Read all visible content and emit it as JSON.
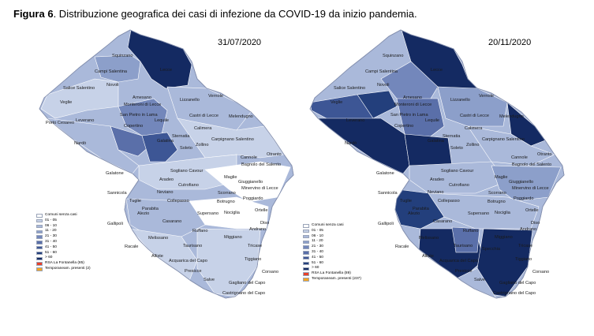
{
  "caption": {
    "bold": "Figura 6",
    "rest": ". Distribuzione  geografica dei  casi di infezione  da  COVID-19 da inizio pandemia."
  },
  "maps": [
    {
      "date": "31/07/2020",
      "legend": [
        {
          "label": "Comuni senza casi",
          "color": "#ffffff"
        },
        {
          "label": "01 - 05",
          "color": "#c7d2e8"
        },
        {
          "label": "06 - 10",
          "color": "#aab9da"
        },
        {
          "label": "11 - 20",
          "color": "#8c9fca"
        },
        {
          "label": "21 - 30",
          "color": "#7387bb"
        },
        {
          "label": "31 - 40",
          "color": "#5a6fa9"
        },
        {
          "label": "41 - 50",
          "color": "#3d5695"
        },
        {
          "label": "51 - 60",
          "color": "#233f7c"
        },
        {
          "label": "> 60",
          "color": "#142a62"
        },
        {
          "label": "RSA La Fontanella (85)",
          "color": "#e8402a"
        },
        {
          "label": "Temporaneam. presenti (2)",
          "color": "#f5a623"
        }
      ],
      "towns": [
        "Squinzano",
        "Campi Salentina",
        "Lecce",
        "Salice Salentino",
        "Novoli",
        "Veglie",
        "Arnesano",
        "Monteroni di Lecce",
        "Lizzanello",
        "Vernole",
        "Porto Cesareo",
        "Leverano",
        "San Pietro in Lama",
        "Lequile",
        "Castri di Lecce",
        "Melendugno",
        "Copertino",
        "Calimera",
        "Sternatia",
        "Carpignano Salentino",
        "Nardò",
        "Galatina",
        "Soleto",
        "Zollino",
        "Cannole",
        "Otranto",
        "Bagnolo del Salento",
        "Galatone",
        "Sogliano Cavour",
        "Aradeo",
        "Maglie",
        "Giuggianello",
        "Cutrofiano",
        "Minervino di Lecce",
        "Sannicola",
        "Neviano",
        "Tuglie",
        "Collepasso",
        "Scorrano",
        "Botrugno",
        "Poggiardo",
        "Parabita",
        "Alezio",
        "Supersano",
        "Nociglia",
        "Ortelle",
        "Gallipoli",
        "Casarano",
        "Diso",
        "Andrano",
        "Ruffano",
        "Melissano",
        "Racale",
        "Miggiano",
        "Alliste",
        "Taurisano",
        "Tricase",
        "Acquarica del Capo",
        "Tiggiano",
        "Presicce",
        "Corsano",
        "Salve",
        "Gagliano del Capo",
        "Castrignano del Capo"
      ]
    },
    {
      "date": "20/11/2020",
      "legend": [
        {
          "label": "Comuni senza casi",
          "color": "#ffffff"
        },
        {
          "label": "01 - 05",
          "color": "#c7d2e8"
        },
        {
          "label": "06 - 10",
          "color": "#aab9da"
        },
        {
          "label": "11 - 20",
          "color": "#8c9fca"
        },
        {
          "label": "21 - 30",
          "color": "#7387bb"
        },
        {
          "label": "31 - 40",
          "color": "#5a6fa9"
        },
        {
          "label": "41 - 50",
          "color": "#3d5695"
        },
        {
          "label": "51 - 60",
          "color": "#233f7c"
        },
        {
          "label": "> 60",
          "color": "#142a62"
        },
        {
          "label": "RSA La Fontanella (89)",
          "color": "#e8402a"
        },
        {
          "label": "Temporaneam. presenti (237)",
          "color": "#f5a623"
        }
      ],
      "towns": [
        "Squinzano",
        "Campi Salentina",
        "Lecce",
        "Salice Salentino",
        "Novoli",
        "Veglie",
        "Arnesano",
        "Monteroni di Lecce",
        "Lizzanello",
        "Vernole",
        "Leverano",
        "San Pietro in Lama",
        "Lequile",
        "Castri di Lecce",
        "Melendugno",
        "Copertino",
        "Calimera",
        "Sternatia",
        "Carpignano Salentino",
        "Nardò",
        "Galatina",
        "Soleto",
        "Zollino",
        "Cannole",
        "Otranto",
        "Bagnolo del Salento",
        "Galatone",
        "Sogliano Cavour",
        "Aradeo",
        "Maglie",
        "Giuggianello",
        "Cutrofiano",
        "Minervino di Lecce",
        "Sannicola",
        "Neviano",
        "Tuglie",
        "Collepasso",
        "Scorrano",
        "Botrugno",
        "Poggiardo",
        "Parabita",
        "Alezio",
        "Supersano",
        "Nociglia",
        "Ortelle",
        "Gallipoli",
        "Casarano",
        "Diso",
        "Andrano",
        "Ruffano",
        "Melissano",
        "Racale",
        "Miggiano",
        "Alliste",
        "Taurisano",
        "Specchia",
        "Tricase",
        "Acquarica del Capo",
        "Tiggiano",
        "Presicce",
        "Corsano",
        "Salve",
        "Gagliano del Capo",
        "Castrignano del Capo"
      ]
    }
  ]
}
